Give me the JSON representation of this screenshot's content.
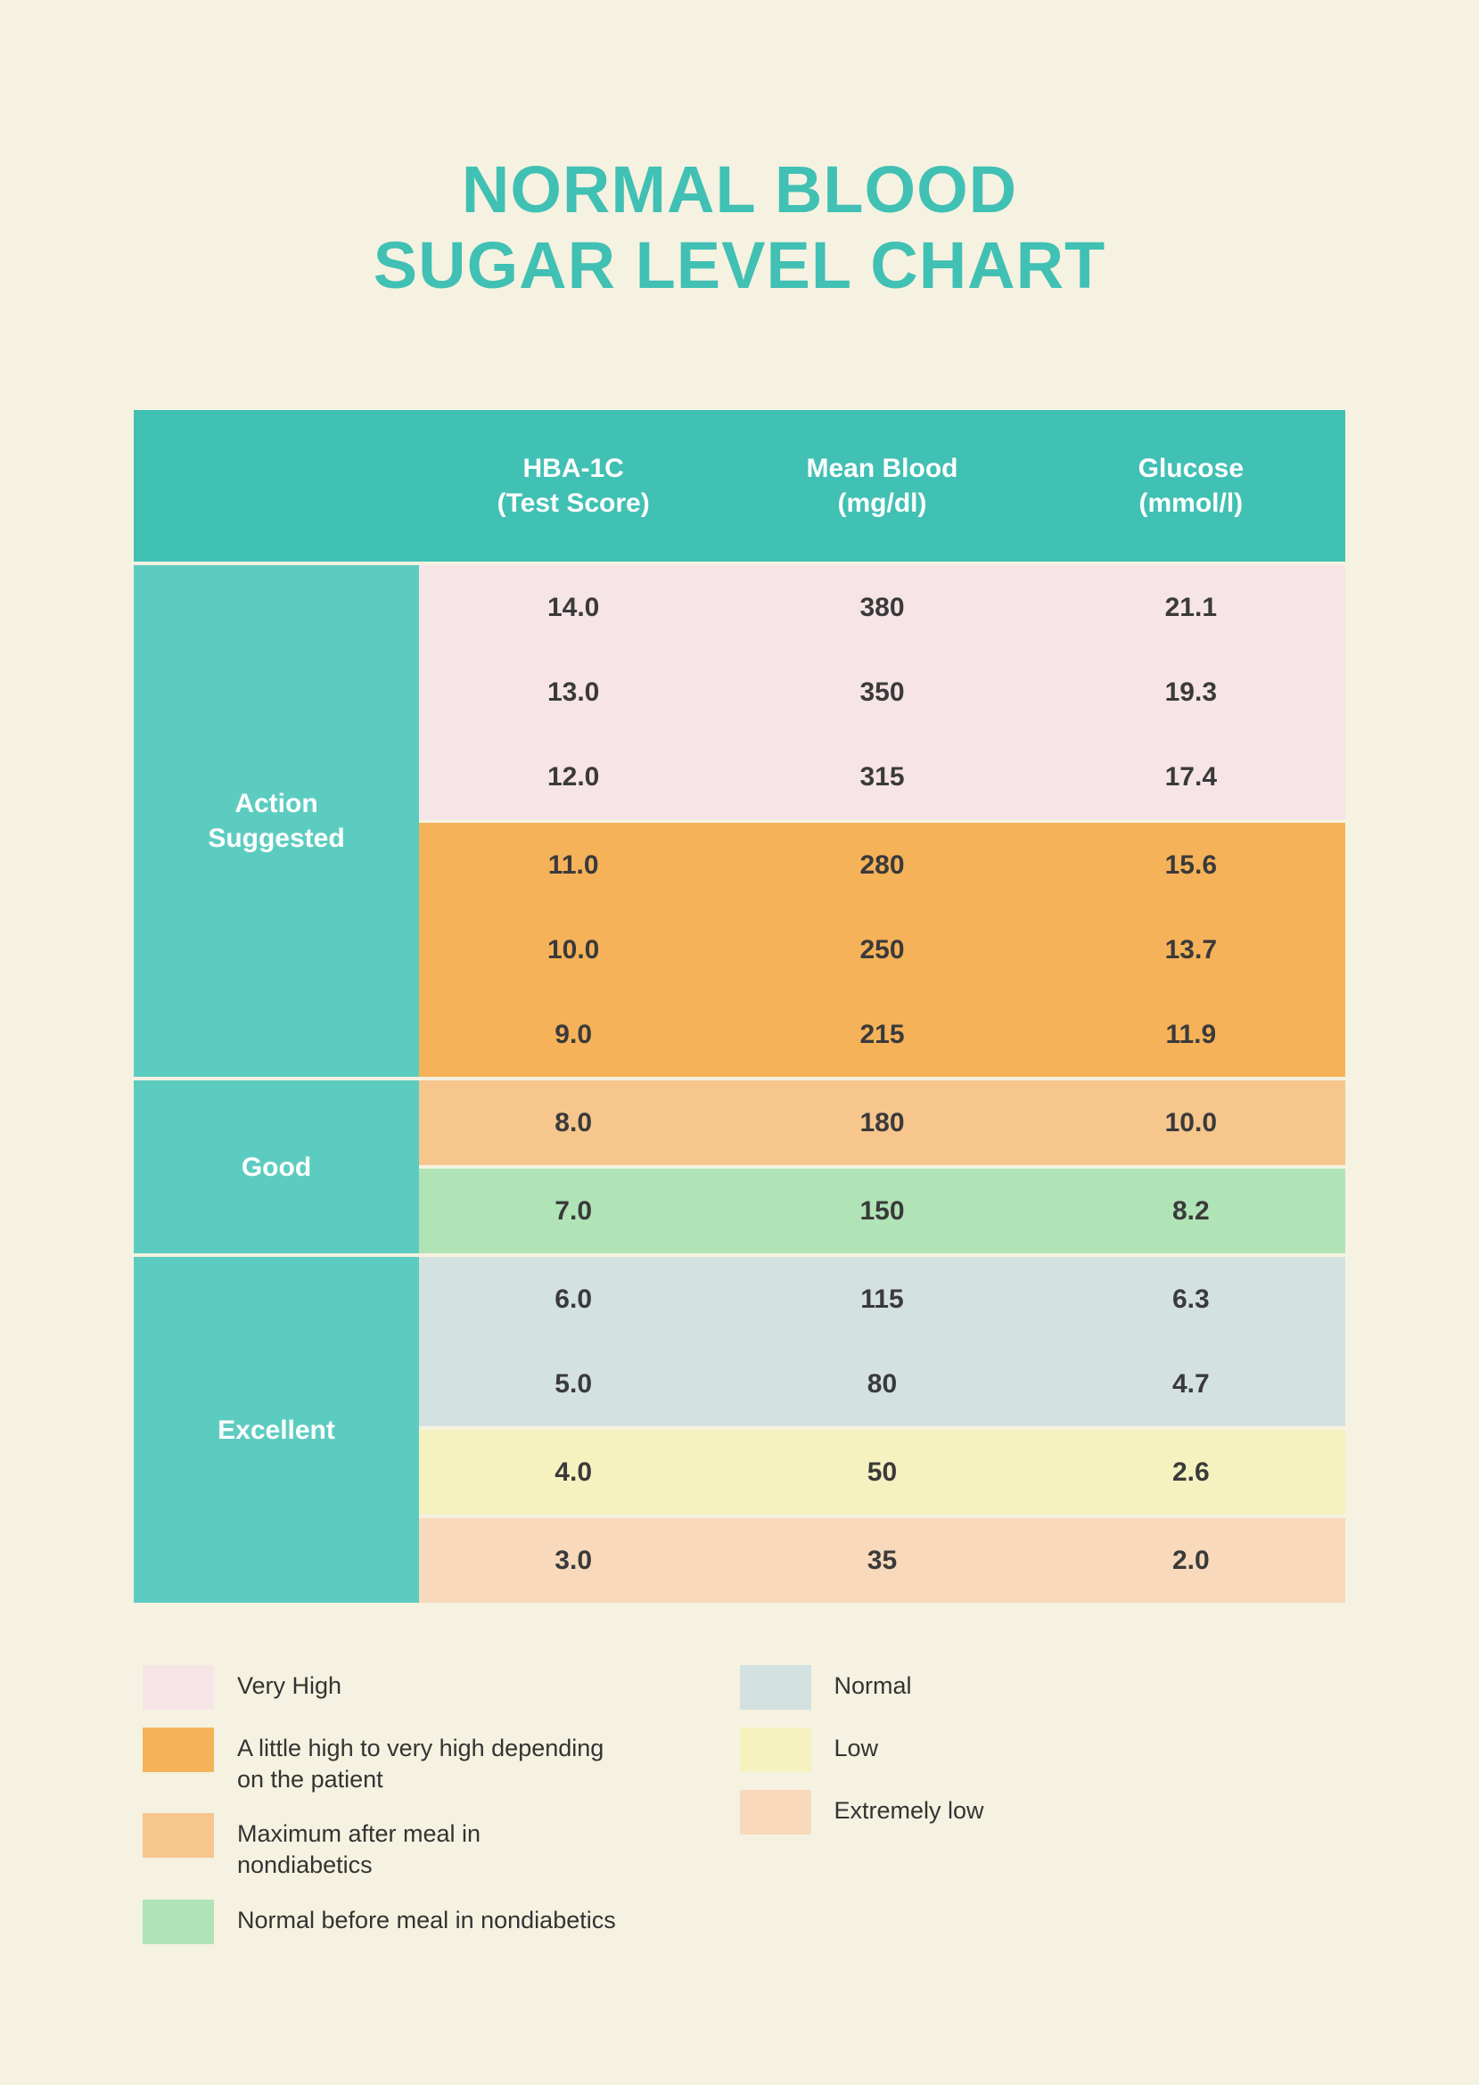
{
  "title_line1": "NORMAL BLOOD",
  "title_line2": "SUGAR LEVEL CHART",
  "colors": {
    "background": "#f5f2e1",
    "teal_header": "#41c0b4",
    "teal_label": "#5dccc0",
    "title": "#41c0b4",
    "very_high": "#f7e4e7",
    "orange_high": "#f6b259",
    "orange_light": "#f6c68d",
    "green_light": "#b0e4b7",
    "blue_gray": "#d4e1e1",
    "yellow_light": "#f6f2c0",
    "peach_light": "#f8d9bb",
    "text_dark": "#3a3a3a",
    "legend_text": "#333333"
  },
  "columns": [
    {
      "line1": "HBA-1C",
      "line2": "(Test Score)"
    },
    {
      "line1": "Mean Blood",
      "line2": "(mg/dl)"
    },
    {
      "line1": "Glucose",
      "line2": "(mmol/l)"
    }
  ],
  "sections": [
    {
      "label": "Action\nSuggested",
      "bands": [
        {
          "color": "#f7e4e7",
          "rows": [
            [
              "14.0",
              "380",
              "21.1"
            ],
            [
              "13.0",
              "350",
              "19.3"
            ],
            [
              "12.0",
              "315",
              "17.4"
            ]
          ]
        },
        {
          "color": "#f6b259",
          "rows": [
            [
              "11.0",
              "280",
              "15.6"
            ],
            [
              "10.0",
              "250",
              "13.7"
            ],
            [
              "9.0",
              "215",
              "11.9"
            ]
          ]
        }
      ]
    },
    {
      "label": "Good",
      "bands": [
        {
          "color": "#f6c68d",
          "rows": [
            [
              "8.0",
              "180",
              "10.0"
            ]
          ]
        },
        {
          "color": "#b0e4b7",
          "rows": [
            [
              "7.0",
              "150",
              "8.2"
            ]
          ]
        }
      ]
    },
    {
      "label": "Excellent",
      "bands": [
        {
          "color": "#d4e1e1",
          "rows": [
            [
              "6.0",
              "115",
              "6.3"
            ],
            [
              "5.0",
              "80",
              "4.7"
            ]
          ]
        },
        {
          "color": "#f6f2c0",
          "rows": [
            [
              "4.0",
              "50",
              "2.6"
            ]
          ]
        },
        {
          "color": "#f8d9bb",
          "rows": [
            [
              "3.0",
              "35",
              "2.0"
            ]
          ]
        }
      ]
    }
  ],
  "legend_left": [
    {
      "color": "#f7e4e7",
      "label": "Very High"
    },
    {
      "color": "#f6b259",
      "label": "A little high to very high depending on the patient"
    },
    {
      "color": "#f6c68d",
      "label": "Maximum after meal in nondiabetics"
    },
    {
      "color": "#b0e4b7",
      "label": "Normal before meal in nondiabetics"
    }
  ],
  "legend_right": [
    {
      "color": "#d4e1e1",
      "label": "Normal"
    },
    {
      "color": "#f6f2c0",
      "label": "Low"
    },
    {
      "color": "#f8d9bb",
      "label": "Extremely low"
    }
  ]
}
